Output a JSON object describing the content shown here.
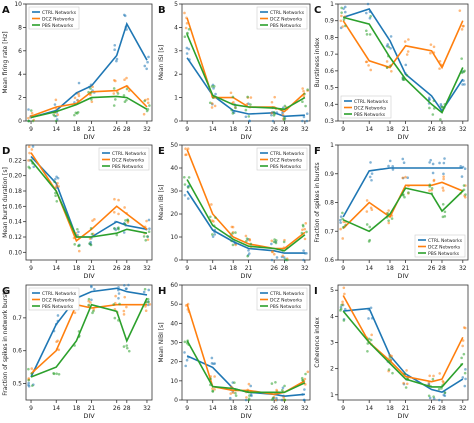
{
  "figure": {
    "series_colors": {
      "CTRL": "#1f77b4",
      "DCZ": "#ff7f0e",
      "PBS": "#2ca02c"
    }
  },
  "chart_data": [
    {
      "panel": "A",
      "type": "line",
      "xlabel": "DIV",
      "ylabel": "Mean firing rate [Hz]",
      "x": [
        9,
        14,
        18,
        21,
        26,
        28,
        32
      ],
      "xticks": [
        9,
        14,
        18,
        21,
        26,
        28,
        32
      ],
      "ylim": [
        0,
        10
      ],
      "yticks": [
        0,
        2,
        4,
        6,
        8,
        10
      ],
      "legend": "top-left",
      "series": [
        {
          "name": "CTRL Networks",
          "key": "CTRL",
          "values": [
            0.3,
            0.9,
            2.4,
            3.0,
            5.6,
            8.3,
            5.2
          ]
        },
        {
          "name": "DCZ Networks",
          "key": "DCZ",
          "values": [
            0.4,
            1.2,
            1.5,
            2.5,
            2.6,
            3.0,
            1.2
          ]
        },
        {
          "name": "PBS Networks",
          "key": "PBS",
          "values": [
            0.3,
            0.8,
            1.4,
            2.0,
            2.1,
            2.0,
            1.0
          ]
        }
      ]
    },
    {
      "panel": "B",
      "type": "line",
      "xlabel": "DIV",
      "ylabel": "Mean ISI [s]",
      "x": [
        9,
        14,
        18,
        21,
        26,
        28,
        32
      ],
      "xticks": [
        9,
        14,
        18,
        21,
        26,
        28,
        32
      ],
      "ylim": [
        0,
        5
      ],
      "yticks": [
        0,
        1,
        2,
        3,
        4,
        5
      ],
      "legend": "top-right",
      "series": [
        {
          "name": "CTRL Networks",
          "key": "CTRL",
          "values": [
            2.7,
            1.1,
            0.45,
            0.3,
            0.35,
            0.2,
            0.25
          ]
        },
        {
          "name": "DCZ Networks",
          "key": "DCZ",
          "values": [
            4.4,
            1.0,
            1.0,
            0.6,
            0.6,
            0.4,
            1.2
          ]
        },
        {
          "name": "PBS Networks",
          "key": "PBS",
          "values": [
            3.7,
            1.1,
            0.7,
            0.6,
            0.55,
            0.5,
            1.0
          ]
        }
      ]
    },
    {
      "panel": "C",
      "type": "line",
      "xlabel": "DIV",
      "ylabel": "Burstiness index",
      "x": [
        9,
        14,
        18,
        21,
        26,
        28,
        32
      ],
      "xticks": [
        9,
        14,
        18,
        21,
        26,
        28,
        32
      ],
      "ylim": [
        0.3,
        1.0
      ],
      "yticks": [
        0.3,
        0.4,
        0.5,
        0.6,
        0.7,
        0.8,
        0.9,
        1.0
      ],
      "legend": "bottom-left",
      "series": [
        {
          "name": "CTRL Networks",
          "key": "CTRL",
          "values": [
            0.92,
            0.97,
            0.78,
            0.58,
            0.45,
            0.36,
            0.55
          ]
        },
        {
          "name": "DCZ Networks",
          "key": "DCZ",
          "values": [
            0.9,
            0.66,
            0.62,
            0.75,
            0.72,
            0.62,
            0.9
          ]
        },
        {
          "name": "PBS Networks",
          "key": "PBS",
          "values": [
            0.92,
            0.88,
            0.68,
            0.55,
            0.4,
            0.35,
            0.62
          ]
        }
      ]
    },
    {
      "panel": "D",
      "type": "line",
      "xlabel": "DIV",
      "ylabel": "Mean burst duration [s]",
      "x": [
        9,
        14,
        18,
        21,
        26,
        28,
        32
      ],
      "xticks": [
        9,
        14,
        18,
        21,
        26,
        28,
        32
      ],
      "ylim": [
        0.09,
        0.24
      ],
      "yticks": [
        0.1,
        0.12,
        0.14,
        0.16,
        0.18,
        0.2,
        0.22
      ],
      "legend": "top-right",
      "series": [
        {
          "name": "CTRL Networks",
          "key": "CTRL",
          "values": [
            0.225,
            0.19,
            0.12,
            0.12,
            0.14,
            0.135,
            0.13
          ]
        },
        {
          "name": "DCZ Networks",
          "key": "DCZ",
          "values": [
            0.23,
            0.18,
            0.115,
            0.13,
            0.16,
            0.15,
            0.13
          ]
        },
        {
          "name": "PBS Networks",
          "key": "PBS",
          "values": [
            0.22,
            0.18,
            0.12,
            0.12,
            0.125,
            0.13,
            0.125
          ]
        }
      ]
    },
    {
      "panel": "E",
      "type": "line",
      "xlabel": "DIV",
      "ylabel": "Mean IBI [s]",
      "x": [
        9,
        14,
        18,
        21,
        26,
        28,
        32
      ],
      "xticks": [
        9,
        14,
        18,
        21,
        26,
        28,
        32
      ],
      "ylim": [
        0,
        50
      ],
      "yticks": [
        0,
        10,
        20,
        30,
        40,
        50
      ],
      "legend": "top-right",
      "series": [
        {
          "name": "CTRL Networks",
          "key": "CTRL",
          "values": [
            30,
            13,
            8,
            5,
            4,
            3,
            3
          ]
        },
        {
          "name": "DCZ Networks",
          "key": "DCZ",
          "values": [
            48,
            20,
            10,
            7,
            5,
            5,
            12
          ]
        },
        {
          "name": "PBS Networks",
          "key": "PBS",
          "values": [
            35,
            15,
            9,
            6,
            5,
            4,
            11
          ]
        }
      ]
    },
    {
      "panel": "F",
      "type": "line",
      "xlabel": "DIV",
      "ylabel": "Fraction of spikes in bursts",
      "x": [
        9,
        14,
        18,
        21,
        26,
        28,
        32
      ],
      "xticks": [
        9,
        14,
        18,
        21,
        26,
        28,
        32
      ],
      "ylim": [
        0.6,
        1.0
      ],
      "yticks": [
        0.6,
        0.7,
        0.8,
        0.9,
        1.0
      ],
      "legend": "bottom-right",
      "series": [
        {
          "name": "CTRL Networks",
          "key": "CTRL",
          "values": [
            0.75,
            0.91,
            0.92,
            0.92,
            0.92,
            0.92,
            0.92
          ]
        },
        {
          "name": "DCZ Networks",
          "key": "DCZ",
          "values": [
            0.71,
            0.8,
            0.75,
            0.86,
            0.86,
            0.87,
            0.84
          ]
        },
        {
          "name": "PBS Networks",
          "key": "PBS",
          "values": [
            0.74,
            0.7,
            0.76,
            0.85,
            0.83,
            0.77,
            0.84
          ]
        }
      ]
    },
    {
      "panel": "G",
      "type": "line",
      "xlabel": "DIV",
      "ylabel": "Fraction of spikes in network bursts",
      "x": [
        9,
        14,
        18,
        21,
        26,
        28,
        32
      ],
      "xticks": [
        9,
        14,
        18,
        21,
        26,
        28,
        32
      ],
      "ylim": [
        0.45,
        0.8
      ],
      "yticks": [
        0.5,
        0.6,
        0.7
      ],
      "legend": "top-left",
      "series": [
        {
          "name": "CTRL Networks",
          "key": "CTRL",
          "values": [
            0.52,
            0.68,
            0.76,
            0.78,
            0.79,
            0.78,
            0.77
          ]
        },
        {
          "name": "DCZ Networks",
          "key": "DCZ",
          "values": [
            0.53,
            0.6,
            0.74,
            0.73,
            0.74,
            0.74,
            0.74
          ]
        },
        {
          "name": "PBS Networks",
          "key": "PBS",
          "values": [
            0.52,
            0.55,
            0.63,
            0.74,
            0.72,
            0.63,
            0.76
          ]
        }
      ]
    },
    {
      "panel": "H",
      "type": "line",
      "xlabel": "DIV",
      "ylabel": "Mean NIBI [s]",
      "x": [
        9,
        14,
        18,
        21,
        26,
        28,
        32
      ],
      "xticks": [
        9,
        14,
        18,
        21,
        26,
        28,
        32
      ],
      "ylim": [
        0,
        60
      ],
      "yticks": [
        0,
        10,
        20,
        30,
        40,
        50,
        60
      ],
      "legend": "top-right",
      "series": [
        {
          "name": "CTRL Networks",
          "key": "CTRL",
          "values": [
            23,
            17,
            6,
            4,
            3,
            2,
            3
          ]
        },
        {
          "name": "DCZ Networks",
          "key": "DCZ",
          "values": [
            50,
            7,
            5,
            5,
            3,
            4,
            10
          ]
        },
        {
          "name": "PBS Networks",
          "key": "PBS",
          "values": [
            31,
            7,
            6,
            4,
            4,
            4,
            9
          ]
        }
      ]
    },
    {
      "panel": "I",
      "type": "line",
      "xlabel": "DIV",
      "ylabel": "Coherence index",
      "x": [
        9,
        14,
        18,
        21,
        26,
        28,
        32
      ],
      "xticks": [
        9,
        14,
        18,
        21,
        26,
        28,
        32
      ],
      "ylim": [
        0.8,
        5.2
      ],
      "yticks": [
        1,
        2,
        3,
        4,
        5
      ],
      "legend": "none",
      "series": [
        {
          "name": "CTRL Networks",
          "key": "CTRL",
          "values": [
            4.2,
            4.3,
            2.5,
            1.8,
            1.2,
            1.1,
            1.6
          ]
        },
        {
          "name": "DCZ Networks",
          "key": "DCZ",
          "values": [
            4.8,
            3.0,
            2.3,
            1.7,
            1.5,
            1.6,
            3.2
          ]
        },
        {
          "name": "PBS Networks",
          "key": "PBS",
          "values": [
            4.2,
            3.0,
            2.2,
            1.6,
            1.3,
            1.3,
            2.2
          ]
        }
      ]
    }
  ]
}
